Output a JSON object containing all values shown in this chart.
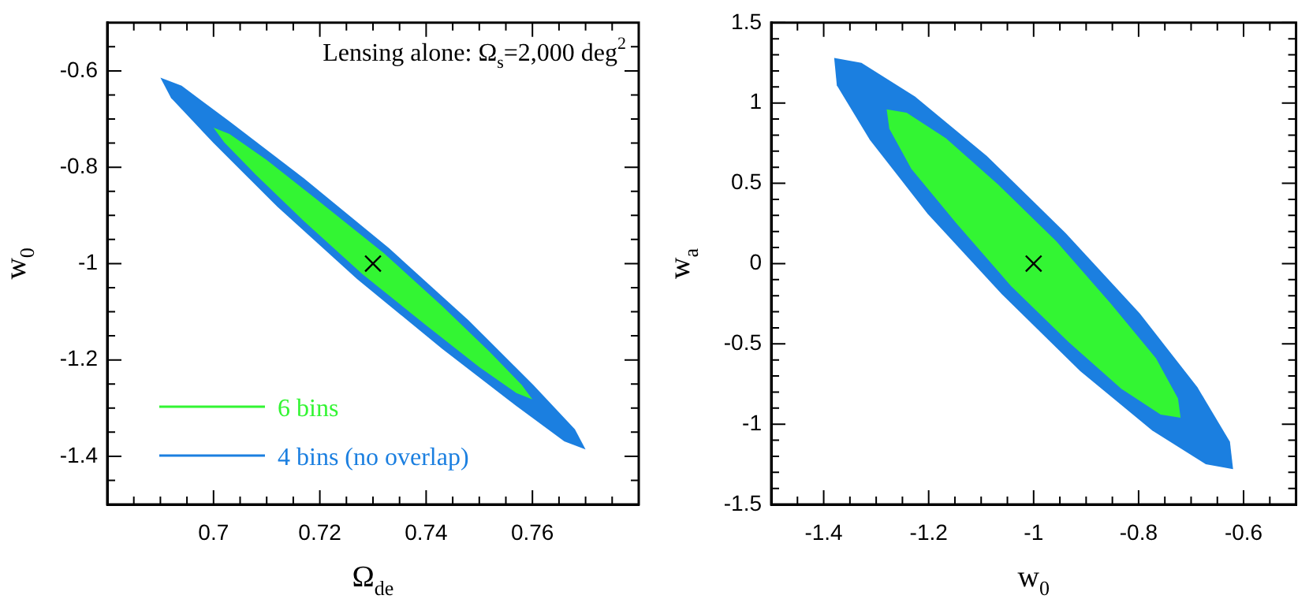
{
  "chart_data": [
    {
      "type": "area",
      "xlabel": "Ω$_{de}$",
      "ylabel": "w$_{0}$",
      "xlim": [
        0.68,
        0.78
      ],
      "ylim": [
        -1.5,
        -0.5
      ],
      "xticks": [
        {
          "value": 0.685,
          "label": null
        },
        {
          "value": 0.69,
          "label": null
        },
        {
          "value": 0.695,
          "label": null
        },
        0.7,
        {
          "value": 0.705,
          "label": null
        },
        {
          "value": 0.71,
          "label": null
        },
        {
          "value": 0.715,
          "label": null
        },
        0.72,
        {
          "value": 0.725,
          "label": null
        },
        {
          "value": 0.73,
          "label": null
        },
        {
          "value": 0.735,
          "label": null
        },
        0.74,
        {
          "value": 0.745,
          "label": null
        },
        {
          "value": 0.75,
          "label": null
        },
        {
          "value": 0.755,
          "label": null
        },
        0.76,
        {
          "value": 0.765,
          "label": null
        },
        {
          "value": 0.77,
          "label": null
        },
        {
          "value": 0.775,
          "label": null
        }
      ],
      "yticks": [
        {
          "value": -1.45,
          "label": null
        },
        -1.4,
        {
          "value": -1.35,
          "label": null
        },
        {
          "value": -1.3,
          "label": null
        },
        {
          "value": -1.25,
          "label": null
        },
        -1.2,
        {
          "value": -1.15,
          "label": null
        },
        {
          "value": -1.1,
          "label": null
        },
        {
          "value": -1.05,
          "label": null
        },
        -1,
        {
          "value": -0.95,
          "label": null
        },
        {
          "value": -0.9,
          "label": null
        },
        {
          "value": -0.85,
          "label": null
        },
        -0.8,
        {
          "value": -0.75,
          "label": null
        },
        {
          "value": -0.7,
          "label": null
        },
        {
          "value": -0.65,
          "label": null
        },
        -0.6,
        {
          "value": -0.55,
          "label": null
        }
      ],
      "grid": false,
      "legend": "bottom left",
      "annotations": [
        "Lensing alone: Ω$_{s}$=2,000 deg$^{2}$"
      ],
      "series": [
        {
          "name": "6 bins",
          "color": "#33f533",
          "x": [
            0.7,
            0.703,
            0.71,
            0.72,
            0.732,
            0.743,
            0.752,
            0.758,
            0.76,
            0.757,
            0.75,
            0.74,
            0.728,
            0.717,
            0.708,
            0.702
          ],
          "values": [
            -0.718,
            -0.731,
            -0.785,
            -0.872,
            -0.978,
            -1.088,
            -1.184,
            -1.252,
            -1.282,
            -1.269,
            -1.215,
            -1.128,
            -1.022,
            -0.912,
            -0.816,
            -0.748
          ]
        },
        {
          "name": "4 bins (no overlap)",
          "color": "#1b7fe0",
          "x": [
            0.69,
            0.694,
            0.703,
            0.717,
            0.733,
            0.748,
            0.76,
            0.768,
            0.77,
            0.766,
            0.757,
            0.743,
            0.727,
            0.712,
            0.7,
            0.692
          ],
          "values": [
            -0.614,
            -0.631,
            -0.705,
            -0.823,
            -0.968,
            -1.118,
            -1.25,
            -1.344,
            -1.386,
            -1.369,
            -1.296,
            -1.177,
            -1.032,
            -0.882,
            -0.75,
            -0.656
          ]
        },
        {
          "type": "scatter",
          "color": "#000000",
          "marker": "cross",
          "x": [
            0.73
          ],
          "values": [
            -1
          ]
        }
      ]
    },
    {
      "type": "area",
      "xlabel": "w$_{0}$",
      "ylabel": "w$_{a}$",
      "xlim": [
        -1.5,
        -0.5
      ],
      "ylim": [
        -1.5,
        1.5
      ],
      "xticks": [
        {
          "value": -1.45,
          "label": null
        },
        -1.4,
        {
          "value": -1.35,
          "label": null
        },
        {
          "value": -1.3,
          "label": null
        },
        {
          "value": -1.25,
          "label": null
        },
        -1.2,
        {
          "value": -1.15,
          "label": null
        },
        {
          "value": -1.1,
          "label": null
        },
        {
          "value": -1.05,
          "label": null
        },
        -1,
        {
          "value": -0.95,
          "label": null
        },
        {
          "value": -0.9,
          "label": null
        },
        {
          "value": -0.85,
          "label": null
        },
        -0.8,
        {
          "value": -0.75,
          "label": null
        },
        {
          "value": -0.7,
          "label": null
        },
        {
          "value": -0.65,
          "label": null
        },
        -0.6,
        {
          "value": -0.55,
          "label": null
        }
      ],
      "yticks": [
        -1.5,
        {
          "value": -1.4,
          "label": null
        },
        {
          "value": -1.3,
          "label": null
        },
        {
          "value": -1.2,
          "label": null
        },
        {
          "value": -1.1,
          "label": null
        },
        -1,
        {
          "value": -0.9,
          "label": null
        },
        {
          "value": -0.8,
          "label": null
        },
        {
          "value": -0.7,
          "label": null
        },
        {
          "value": -0.6,
          "label": null
        },
        -0.5,
        {
          "value": -0.4,
          "label": null
        },
        {
          "value": -0.3,
          "label": null
        },
        {
          "value": -0.2,
          "label": null
        },
        {
          "value": -0.1,
          "label": null
        },
        0,
        {
          "value": 0.1,
          "label": null
        },
        {
          "value": 0.2,
          "label": null
        },
        {
          "value": 0.3,
          "label": null
        },
        {
          "value": 0.4,
          "label": null
        },
        0.5,
        {
          "value": 0.6,
          "label": null
        },
        {
          "value": 0.7,
          "label": null
        },
        {
          "value": 0.8,
          "label": null
        },
        {
          "value": 0.9,
          "label": null
        },
        1,
        {
          "value": 1.1,
          "label": null
        },
        {
          "value": 1.2,
          "label": null
        },
        {
          "value": 1.3,
          "label": null
        },
        {
          "value": 1.4,
          "label": null
        },
        1.5
      ],
      "grid": false,
      "legend": false,
      "series": [
        {
          "color": "#33f533",
          "x": [
            -1.28,
            -1.242,
            -1.167,
            -1.067,
            -0.957,
            -0.853,
            -0.767,
            -0.725,
            -0.72,
            -0.758,
            -0.833,
            -0.933,
            -1.043,
            -1.147,
            -1.233,
            -1.275
          ],
          "values": [
            0.96,
            0.94,
            0.78,
            0.49,
            0.14,
            -0.25,
            -0.59,
            -0.84,
            -0.96,
            -0.94,
            -0.78,
            -0.49,
            -0.14,
            0.25,
            0.59,
            0.84
          ]
        },
        {
          "color": "#1b7fe0",
          "x": [
            -1.38,
            -1.328,
            -1.226,
            -1.089,
            -0.939,
            -0.798,
            -0.688,
            -0.626,
            -0.62,
            -0.672,
            -0.774,
            -0.911,
            -1.061,
            -1.202,
            -1.312,
            -1.375
          ],
          "values": [
            1.28,
            1.25,
            1.04,
            0.67,
            0.19,
            -0.31,
            -0.77,
            -1.11,
            -1.28,
            -1.25,
            -1.04,
            -0.67,
            -0.19,
            0.31,
            0.77,
            1.11
          ]
        },
        {
          "type": "scatter",
          "color": "#000000",
          "marker": "cross",
          "x": [
            -1
          ],
          "values": [
            0
          ]
        }
      ]
    }
  ]
}
